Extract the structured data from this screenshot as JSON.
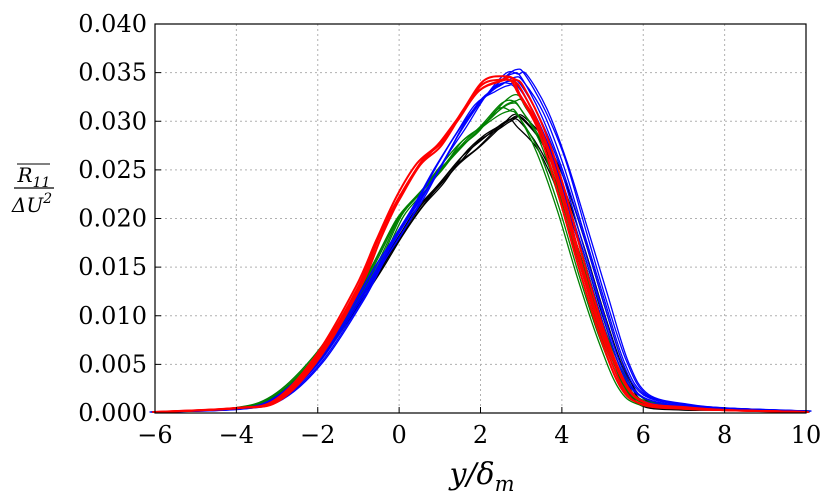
{
  "chart_data": {
    "type": "line",
    "title": "",
    "xlabel": "y/δm",
    "ylabel": "R11/ΔU²",
    "ylabel_numerator": "R",
    "ylabel_numerator_sub": "11",
    "ylabel_denominator": "ΔU",
    "ylabel_denominator_sup": "2",
    "xlabel_main": "y/δ",
    "xlabel_sub": "m",
    "xlim": [
      -6,
      10
    ],
    "ylim": [
      0,
      0.04
    ],
    "grid": true,
    "xticks": [
      -6,
      -4,
      -2,
      0,
      2,
      4,
      6,
      8,
      10
    ],
    "xtick_labels": [
      "−6",
      "−4",
      "−2",
      "0",
      "2",
      "4",
      "6",
      "8",
      "10"
    ],
    "yticks": [
      0,
      0.005,
      0.01,
      0.015,
      0.02,
      0.025,
      0.03,
      0.035,
      0.04
    ],
    "ytick_labels": [
      "0.000",
      "0.005",
      "0.010",
      "0.015",
      "0.020",
      "0.025",
      "0.030",
      "0.035",
      "0.040"
    ],
    "series": [
      {
        "name": "black",
        "color": "#000000",
        "count": 5,
        "x": [
          -6,
          -4,
          -3,
          -2,
          -1,
          -0.5,
          0,
          0.5,
          1,
          1.5,
          2,
          2.5,
          2.8,
          3,
          3.5,
          4,
          4.5,
          5,
          5.5,
          6,
          7,
          8,
          10
        ],
        "y": [
          0.0001,
          0.0005,
          0.0016,
          0.0055,
          0.0115,
          0.0145,
          0.018,
          0.021,
          0.0235,
          0.026,
          0.0278,
          0.0295,
          0.0305,
          0.0302,
          0.0275,
          0.0232,
          0.017,
          0.01,
          0.004,
          0.001,
          0.0004,
          0.0003,
          0.0001
        ]
      },
      {
        "name": "green",
        "color": "#008000",
        "count": 6,
        "x": [
          -6,
          -4,
          -3,
          -2,
          -1,
          -0.5,
          0,
          0.5,
          1,
          1.5,
          2,
          2.5,
          2.8,
          3,
          3.5,
          4,
          4.5,
          5,
          5.5,
          6,
          7,
          8,
          10
        ],
        "y": [
          0.0001,
          0.0005,
          0.0018,
          0.0058,
          0.012,
          0.0158,
          0.02,
          0.0225,
          0.025,
          0.0275,
          0.0295,
          0.0313,
          0.0318,
          0.0312,
          0.0275,
          0.0215,
          0.0145,
          0.0078,
          0.003,
          0.0011,
          0.0006,
          0.0004,
          0.0002
        ]
      },
      {
        "name": "blue",
        "color": "#0000ff",
        "count": 7,
        "x": [
          -6,
          -4,
          -3,
          -2,
          -1,
          -0.5,
          0,
          0.5,
          1,
          1.5,
          2,
          2.5,
          2.8,
          3,
          3.5,
          4,
          4.5,
          5,
          5.5,
          6,
          7,
          8,
          10
        ],
        "y": [
          0.0001,
          0.0004,
          0.0014,
          0.0052,
          0.0115,
          0.0152,
          0.0185,
          0.022,
          0.0255,
          0.029,
          0.032,
          0.034,
          0.0345,
          0.0342,
          0.0308,
          0.0255,
          0.0185,
          0.0115,
          0.005,
          0.0018,
          0.0008,
          0.0005,
          0.0002
        ]
      },
      {
        "name": "red",
        "color": "#ff0000",
        "count": 4,
        "x": [
          -6,
          -4,
          -3,
          -2,
          -1,
          -0.5,
          0,
          0.5,
          1,
          1.5,
          2,
          2.5,
          2.8,
          3,
          3.5,
          4,
          4.5,
          5,
          5.5,
          6,
          7,
          8,
          10
        ],
        "y": [
          0.0001,
          0.0005,
          0.0013,
          0.0058,
          0.013,
          0.018,
          0.0222,
          0.0257,
          0.0275,
          0.0305,
          0.0335,
          0.0345,
          0.0342,
          0.033,
          0.029,
          0.0225,
          0.015,
          0.008,
          0.003,
          0.001,
          0.0005,
          0.0003,
          0.0001
        ]
      }
    ]
  }
}
